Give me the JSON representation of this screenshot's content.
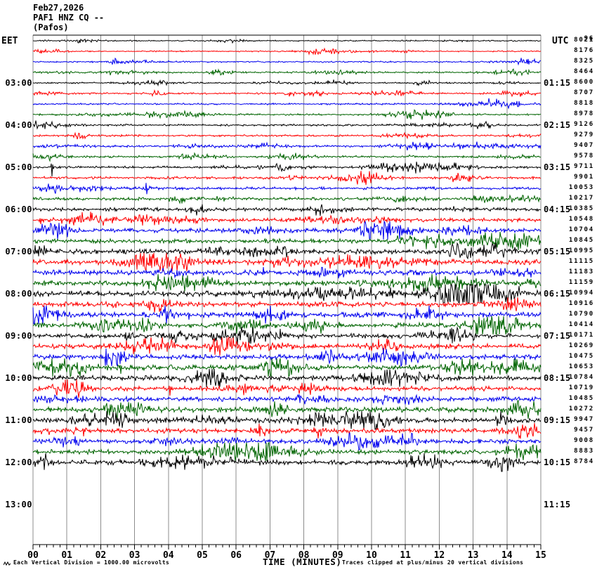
{
  "title": {
    "line1": "Feb27,2026",
    "line2": "PAF1 HNZ CQ --",
    "line3": "(Pafos)"
  },
  "left_axis": {
    "header": "EET",
    "labels": [
      {
        "row": 4,
        "text": "03:00"
      },
      {
        "row": 8,
        "text": "04:00"
      },
      {
        "row": 12,
        "text": "05:00"
      },
      {
        "row": 16,
        "text": "06:00"
      },
      {
        "row": 20,
        "text": "07:00"
      },
      {
        "row": 24,
        "text": "08:00"
      },
      {
        "row": 28,
        "text": "09:00"
      },
      {
        "row": 32,
        "text": "10:00"
      },
      {
        "row": 36,
        "text": "11:00"
      },
      {
        "row": 40,
        "text": "12:00"
      },
      {
        "row": 44,
        "text": "13:00"
      }
    ]
  },
  "right_axis": {
    "header": "UTC",
    "dc_overlap": "96",
    "labels": [
      {
        "row": 4,
        "text": "01:15"
      },
      {
        "row": 8,
        "text": "02:15"
      },
      {
        "row": 12,
        "text": "03:15"
      },
      {
        "row": 16,
        "text": "04:15"
      },
      {
        "row": 20,
        "text": "05:15"
      },
      {
        "row": 24,
        "text": "06:15"
      },
      {
        "row": 28,
        "text": "07:15"
      },
      {
        "row": 32,
        "text": "08:15"
      },
      {
        "row": 36,
        "text": "09:15"
      },
      {
        "row": 40,
        "text": "10:15"
      },
      {
        "row": 44,
        "text": "11:15"
      }
    ]
  },
  "footer": {
    "scale_note": "Each Vertical Division = 1000.00 microvolts",
    "time_label": "TIME (MINUTES)",
    "clip_note": "Traces clipped at plus/minus 20 vertical divisions"
  },
  "chart_data": {
    "type": "line",
    "subtype": "helicorder-seismogram",
    "title": "PAF1 HNZ CQ -- (Pafos) Feb27,2026",
    "xlabel": "TIME (MINUTES)",
    "minutes_per_line": 15,
    "x_range_minutes": [
      0,
      15
    ],
    "x_ticks": [
      "00",
      "01",
      "02",
      "03",
      "04",
      "05",
      "06",
      "07",
      "08",
      "09",
      "10",
      "11",
      "12",
      "13",
      "14",
      "15"
    ],
    "grid": "vertical gray lines every 1 minute",
    "legend_position": "none",
    "trace_colors": [
      "#000000",
      "#ff0000",
      "#0000ee",
      "#006400"
    ],
    "grid_color": "#8c8c8c",
    "seed": 27,
    "rows": [
      {
        "dc": 8021,
        "noise": 0.6
      },
      {
        "dc": 8176,
        "noise": 0.6
      },
      {
        "dc": 8325,
        "noise": 0.7
      },
      {
        "dc": 8464,
        "noise": 0.7
      },
      {
        "dc": 8600,
        "noise": 0.7
      },
      {
        "dc": 8707,
        "noise": 0.8
      },
      {
        "dc": 8818,
        "noise": 0.8
      },
      {
        "dc": 8978,
        "noise": 0.8
      },
      {
        "dc": 9126,
        "noise": 0.9
      },
      {
        "dc": 9279,
        "noise": 0.9
      },
      {
        "dc": 9407,
        "noise": 1.0
      },
      {
        "dc": 9578,
        "noise": 1.0
      },
      {
        "dc": 9711,
        "noise": 1.1
      },
      {
        "dc": 9901,
        "noise": 1.2
      },
      {
        "dc": 10053,
        "noise": 1.3
      },
      {
        "dc": 10217,
        "noise": 1.4
      },
      {
        "dc": 10385,
        "noise": 1.6
      },
      {
        "dc": 10548,
        "noise": 1.8
      },
      {
        "dc": 10704,
        "noise": 2.0
      },
      {
        "dc": 10845,
        "noise": 2.0
      },
      {
        "dc": 10995,
        "noise": 2.2
      },
      {
        "dc": 11115,
        "noise": 2.4
      },
      {
        "dc": 11183,
        "noise": 2.4
      },
      {
        "dc": 11159,
        "noise": 2.4
      },
      {
        "dc": 10994,
        "noise": 2.6
      },
      {
        "dc": 10916,
        "noise": 2.4
      },
      {
        "dc": 10790,
        "noise": 2.4
      },
      {
        "dc": 10414,
        "noise": 2.4
      },
      {
        "dc": 10171,
        "noise": 2.2
      },
      {
        "dc": 10269,
        "noise": 2.4
      },
      {
        "dc": 10475,
        "noise": 2.2
      },
      {
        "dc": 10653,
        "noise": 2.4
      },
      {
        "dc": 10784,
        "noise": 2.4
      },
      {
        "dc": 10719,
        "noise": 2.2
      },
      {
        "dc": 10485,
        "noise": 2.2
      },
      {
        "dc": 10272,
        "noise": 2.4
      },
      {
        "dc": 9947,
        "noise": 2.2
      },
      {
        "dc": 9457,
        "noise": 2.2
      },
      {
        "dc": 9008,
        "noise": 2.0
      },
      {
        "dc": 8883,
        "noise": 2.2
      },
      {
        "dc": 8784,
        "noise": 2.2
      }
    ],
    "events_spikes": [
      {
        "row": 12,
        "min": 0.55,
        "amp": 13
      },
      {
        "row": 17,
        "min": 0.22,
        "amp": 6
      },
      {
        "row": 20,
        "min": 0.06,
        "amp": -9
      },
      {
        "row": 22,
        "min": 6.8,
        "amp": -8
      },
      {
        "row": 24,
        "min": 10.55,
        "amp": -9
      },
      {
        "row": 26,
        "min": 4.6,
        "amp": 7
      },
      {
        "row": 28,
        "min": 7.3,
        "amp": -10
      },
      {
        "row": 31,
        "min": 2.6,
        "amp": 9
      },
      {
        "row": 32,
        "min": 4.85,
        "amp": -11
      },
      {
        "row": 33,
        "min": 4.05,
        "amp": 10
      },
      {
        "row": 35,
        "min": 7.35,
        "amp": -7
      },
      {
        "row": 37,
        "min": 1.5,
        "amp": 8
      },
      {
        "row": 40,
        "min": 11.2,
        "amp": -9
      }
    ],
    "events_bursts": [
      {
        "row": 21,
        "min": 9.5,
        "w": 1.2,
        "gain": 2
      },
      {
        "row": 23,
        "min": 11.8,
        "w": 0.9,
        "gain": 2.5
      },
      {
        "row": 24,
        "min": 9.0,
        "w": 1.5,
        "gain": 1.5
      },
      {
        "row": 26,
        "min": 0.2,
        "w": 0.4,
        "gain": 4
      },
      {
        "row": 28,
        "min": 6.0,
        "w": 1.0,
        "gain": 1.5
      },
      {
        "row": 31,
        "min": 0.9,
        "w": 0.5,
        "gain": 4
      },
      {
        "row": 36,
        "min": 2.2,
        "w": 0.6,
        "gain": 3
      },
      {
        "row": 39,
        "min": 6.5,
        "w": 0.8,
        "gain": 4
      },
      {
        "row": 40,
        "min": 4.8,
        "w": 0.9,
        "gain": 2.5
      }
    ]
  }
}
